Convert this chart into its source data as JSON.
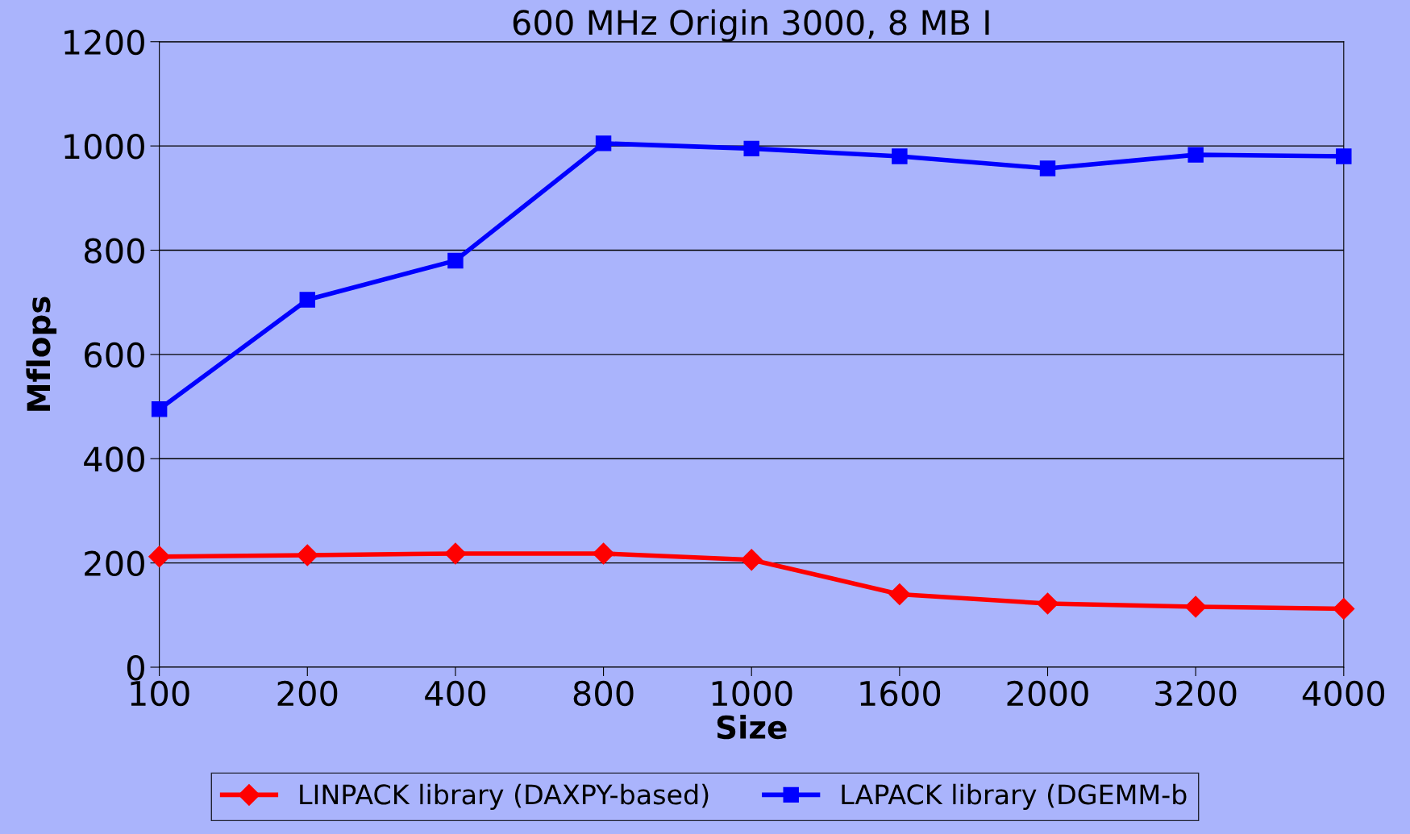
{
  "chart_data": {
    "type": "line",
    "title": "600 MHz Origin 3000, 8 MB I",
    "xlabel": "Size",
    "ylabel": "Mflops",
    "categories": [
      "100",
      "200",
      "400",
      "800",
      "1000",
      "1600",
      "2000",
      "3200",
      "4000"
    ],
    "series": [
      {
        "name": "LINPACK library (DAXPY-based)",
        "color": "#ff0000",
        "marker": "diamond",
        "values": [
          212,
          215,
          218,
          218,
          206,
          140,
          122,
          116,
          112
        ]
      },
      {
        "name": "LAPACK library (DGEMM-b",
        "color": "#0000ff",
        "marker": "square",
        "values": [
          495,
          705,
          780,
          1005,
          995,
          980,
          957,
          983,
          980
        ]
      }
    ],
    "ylim": [
      0,
      1200
    ],
    "yticks": [
      0,
      200,
      400,
      600,
      800,
      1000,
      1200
    ],
    "grid": "y",
    "legend": "bottom",
    "line_style": "solid"
  }
}
